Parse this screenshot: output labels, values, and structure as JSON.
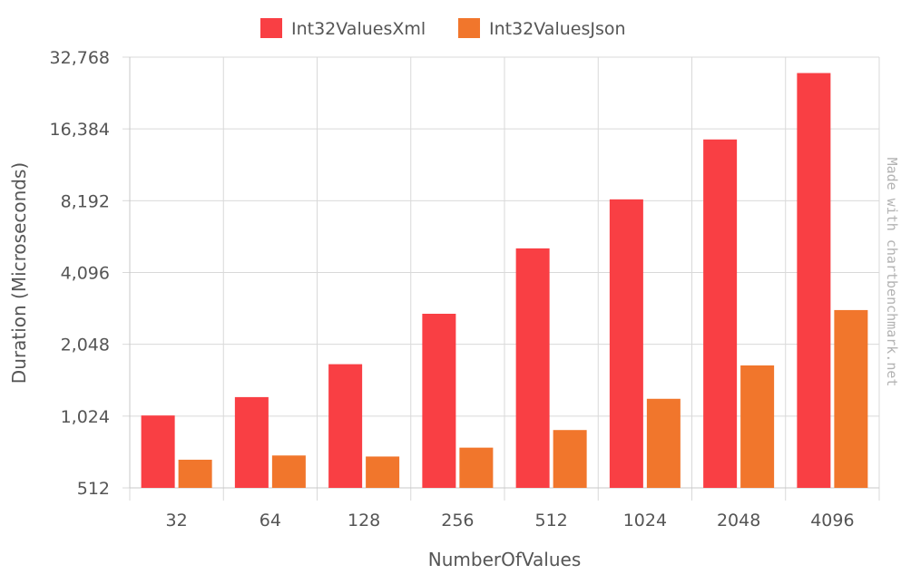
{
  "chart_data": {
    "type": "bar",
    "xlabel": "NumberOfValues",
    "ylabel": "Duration (Microseconds)",
    "y_scale": "log2",
    "ylim": [
      512,
      32768
    ],
    "y_ticks": [
      "512",
      "1,024",
      "2,048",
      "4,096",
      "8,192",
      "16,384",
      "32,768"
    ],
    "categories": [
      "32",
      "64",
      "128",
      "256",
      "512",
      "1024",
      "2048",
      "4096"
    ],
    "series": [
      {
        "name": "Int32ValuesXml",
        "color": "#f93f44",
        "values": [
          1030,
          1230,
          1690,
          2750,
          5170,
          8300,
          14800,
          28100
        ]
      },
      {
        "name": "Int32ValuesJson",
        "color": "#f1762c",
        "values": [
          672,
          700,
          693,
          755,
          895,
          1210,
          1670,
          2850
        ]
      }
    ],
    "legend_position": "top",
    "grid": true,
    "watermark": "Made with chartbenchmark.net"
  }
}
